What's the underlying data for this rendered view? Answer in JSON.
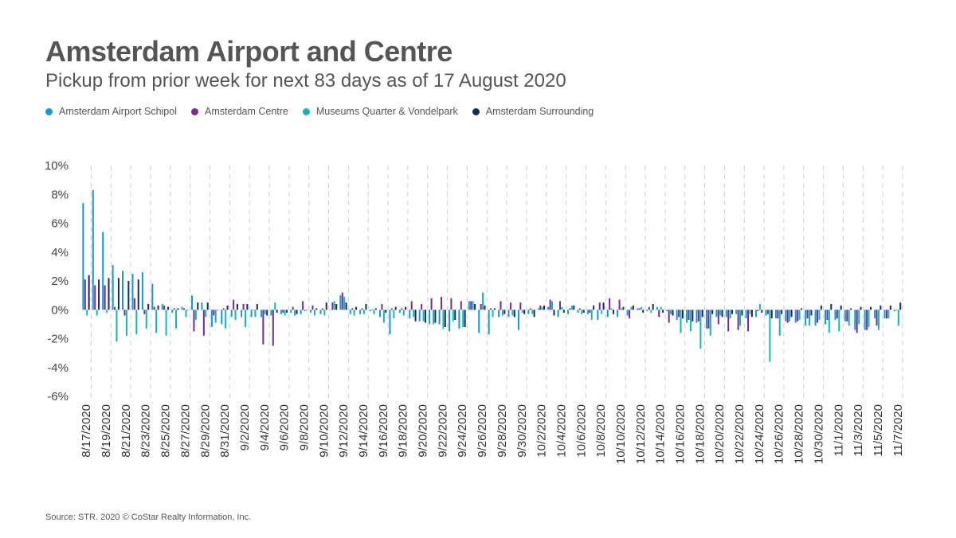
{
  "chart_data": {
    "type": "bar",
    "title": "Amsterdam Airport and Centre",
    "subtitle": "Pickup from prior week for next 83 days as of 17 August 2020",
    "ylim": [
      -6,
      10
    ],
    "yticks": [
      10,
      8,
      6,
      4,
      2,
      0,
      -2,
      -4,
      -6
    ],
    "ytick_labels": [
      "10%",
      "8%",
      "6%",
      "4%",
      "2%",
      "0%",
      "-2%",
      "-4%",
      "-6%"
    ],
    "grid": "vertical-dashed",
    "legend_position": "top-left",
    "categories": [
      "8/17/2020",
      "8/18/2020",
      "8/19/2020",
      "8/20/2020",
      "8/21/2020",
      "8/22/2020",
      "8/23/2020",
      "8/24/2020",
      "8/25/2020",
      "8/26/2020",
      "8/27/2020",
      "8/28/2020",
      "8/29/2020",
      "8/30/2020",
      "8/31/2020",
      "9/1/2020",
      "9/2/2020",
      "9/3/2020",
      "9/4/2020",
      "9/5/2020",
      "9/6/2020",
      "9/7/2020",
      "9/8/2020",
      "9/9/2020",
      "9/10/2020",
      "9/11/2020",
      "9/12/2020",
      "9/13/2020",
      "9/14/2020",
      "9/15/2020",
      "9/16/2020",
      "9/17/2020",
      "9/18/2020",
      "9/19/2020",
      "9/20/2020",
      "9/21/2020",
      "9/22/2020",
      "9/23/2020",
      "9/24/2020",
      "9/25/2020",
      "9/26/2020",
      "9/27/2020",
      "9/28/2020",
      "9/29/2020",
      "9/30/2020",
      "10/1/2020",
      "10/2/2020",
      "10/3/2020",
      "10/4/2020",
      "10/5/2020",
      "10/6/2020",
      "10/7/2020",
      "10/8/2020",
      "10/9/2020",
      "10/10/2020",
      "10/11/2020",
      "10/12/2020",
      "10/13/2020",
      "10/14/2020",
      "10/15/2020",
      "10/16/2020",
      "10/17/2020",
      "10/18/2020",
      "10/19/2020",
      "10/20/2020",
      "10/21/2020",
      "10/22/2020",
      "10/23/2020",
      "10/24/2020",
      "10/25/2020",
      "10/26/2020",
      "10/27/2020",
      "10/28/2020",
      "10/29/2020",
      "10/30/2020",
      "10/31/2020",
      "11/1/2020",
      "11/2/2020",
      "11/3/2020",
      "11/4/2020",
      "11/5/2020",
      "11/6/2020",
      "11/7/2020"
    ],
    "series": [
      {
        "name": "Amsterdam Airport Schipol",
        "color": "#1a96d4",
        "values": [
          7.4,
          8.3,
          5.4,
          3.1,
          2.7,
          2.5,
          2.6,
          1.8,
          0.4,
          -0.2,
          0.2,
          1.0,
          0.5,
          -1.2,
          -1.0,
          -0.5,
          -0.5,
          -0.5,
          -0.5,
          -0.4,
          -0.3,
          -0.2,
          -0.3,
          -0.2,
          -0.3,
          0.0,
          1.0,
          -0.3,
          -0.3,
          -0.1,
          -0.5,
          -1.7,
          -0.2,
          -0.6,
          -0.8,
          -1.0,
          -1.0,
          -1.5,
          -1.3,
          0.6,
          -1.6,
          -1.7,
          -0.5,
          -0.5,
          -1.4,
          -0.3,
          0.1,
          0.2,
          -0.5,
          -0.3,
          -0.2,
          -0.3,
          -0.7,
          -0.5,
          -0.5,
          -0.4,
          0.1,
          -0.1,
          0.2,
          -0.1,
          -0.7,
          -0.9,
          -0.9,
          -1.3,
          -0.5,
          -0.5,
          -0.3,
          -0.6,
          -0.5,
          -0.4,
          -0.6,
          -0.8,
          -0.9,
          -1.1,
          -1.1,
          -1.0,
          -0.7,
          -0.8,
          -1.4,
          -1.4,
          -0.6,
          -0.6,
          -0.1
        ]
      },
      {
        "name": "Amsterdam Centre",
        "color": "#7b2d8e",
        "values": [
          2.1,
          1.7,
          1.7,
          0.2,
          -0.4,
          0.8,
          -0.3,
          0.2,
          0.3,
          0.1,
          0.1,
          -1.5,
          -1.8,
          -0.4,
          0.1,
          0.7,
          0.4,
          0.0,
          -2.4,
          -2.5,
          -0.2,
          0.2,
          0.6,
          0.3,
          0.1,
          0.5,
          1.2,
          0.1,
          0.1,
          0.0,
          0.4,
          0.1,
          0.1,
          0.6,
          0.4,
          0.8,
          0.9,
          0.8,
          0.6,
          0.6,
          0.4,
          0.1,
          0.6,
          0.5,
          0.5,
          0.1,
          0.3,
          0.7,
          0.6,
          0.1,
          0.1,
          -0.2,
          0.5,
          0.8,
          0.7,
          -0.6,
          0.1,
          0.2,
          -0.5,
          -0.9,
          -0.5,
          -0.7,
          -0.8,
          -1.3,
          -1.0,
          -1.5,
          -1.4,
          -1.5,
          -0.1,
          -0.3,
          -0.6,
          -0.9,
          -0.8,
          -0.6,
          -0.9,
          -0.7,
          -0.6,
          -0.8,
          -1.6,
          -1.4,
          -1.1,
          -0.6,
          0.0
        ]
      },
      {
        "name": "Museums Quarter & Vondelpark",
        "color": "#1bb5b0",
        "values": [
          -0.4,
          -0.4,
          -0.2,
          -2.2,
          -1.8,
          -1.7,
          -1.3,
          -1.6,
          -1.8,
          -1.3,
          -0.5,
          -0.7,
          -0.5,
          -0.9,
          -1.3,
          -0.7,
          -1.2,
          -0.5,
          -0.3,
          0.5,
          -0.4,
          -0.4,
          -0.1,
          -0.4,
          -0.4,
          0.6,
          0.9,
          -0.4,
          -0.3,
          -0.3,
          -0.9,
          -0.6,
          -0.4,
          -0.5,
          -0.8,
          -1.0,
          -1.3,
          -0.8,
          -1.2,
          0.6,
          1.2,
          -0.5,
          -0.4,
          -0.4,
          -0.2,
          -0.3,
          0.2,
          0.6,
          0.2,
          0.3,
          -0.3,
          -0.7,
          -0.3,
          0.1,
          0.1,
          0.2,
          0.2,
          -0.2,
          0.2,
          -0.3,
          -1.6,
          -1.5,
          -2.7,
          -1.8,
          -0.4,
          -0.6,
          -1.1,
          -0.3,
          0.4,
          -3.6,
          -1.8,
          -0.8,
          -0.7,
          -1.1,
          -0.7,
          -1.6,
          -1.5,
          -1.1,
          -1.0,
          -1.2,
          -1.4,
          -0.6,
          -1.1
        ]
      },
      {
        "name": "Amsterdam Surrounding",
        "color": "#1b2a5e",
        "values": [
          2.4,
          2.1,
          2.2,
          2.2,
          2.0,
          2.1,
          0.4,
          0.3,
          0.2,
          0.1,
          0.0,
          0.5,
          0.5,
          0.0,
          0.3,
          0.4,
          0.4,
          0.4,
          -0.4,
          -0.2,
          -0.2,
          -0.3,
          0.0,
          0.1,
          0.5,
          0.4,
          0.5,
          0.2,
          0.4,
          0.1,
          -0.2,
          0.2,
          0.2,
          -0.8,
          -0.9,
          -0.9,
          -1.2,
          -0.7,
          -1.2,
          0.4,
          0.3,
          0.1,
          -0.3,
          -0.5,
          -0.3,
          -0.5,
          0.3,
          -0.4,
          -0.2,
          0.3,
          -0.2,
          0.3,
          0.5,
          -0.3,
          0.2,
          0.3,
          -0.2,
          0.4,
          -0.2,
          -0.4,
          -0.6,
          -0.8,
          -0.5,
          -0.3,
          -0.5,
          -0.3,
          -0.4,
          -0.5,
          -0.2,
          -0.6,
          -0.3,
          -0.5,
          0.1,
          -0.4,
          0.3,
          0.4,
          0.3,
          0.1,
          0.2,
          0.2,
          0.3,
          0.3,
          0.5
        ]
      }
    ]
  },
  "source": "Source: STR. 2020 © CoStar Realty Information, Inc."
}
